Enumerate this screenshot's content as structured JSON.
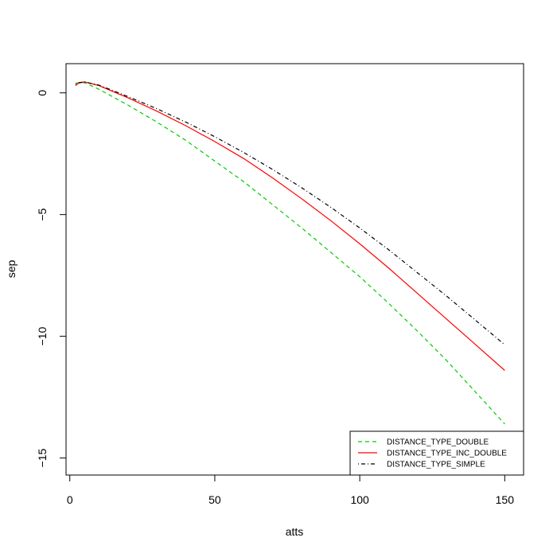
{
  "chart_data": {
    "type": "line",
    "title": "",
    "xlabel": "atts",
    "ylabel": "sep",
    "xlim": [
      -1.3,
      156.5
    ],
    "ylim": [
      -15.7,
      1.2
    ],
    "x_ticks": [
      0,
      50,
      100,
      150
    ],
    "y_ticks": [
      0,
      -5,
      -10,
      -15
    ],
    "x_tick_labels": [
      "0",
      "50",
      "100",
      "150"
    ],
    "y_tick_labels": [
      "0",
      "−5",
      "−10",
      "−15"
    ],
    "grid": false,
    "legend_position": "bottom-right",
    "series": [
      {
        "name": "DISTANCE_TYPE_DOUBLE",
        "color": "#00CD00",
        "dash": "dashed",
        "points": [
          [
            2,
            0.4
          ],
          [
            5,
            0.42
          ],
          [
            10,
            0.15
          ],
          [
            20,
            -0.5
          ],
          [
            30,
            -1.2
          ],
          [
            40,
            -1.95
          ],
          [
            50,
            -2.8
          ],
          [
            60,
            -3.65
          ],
          [
            70,
            -4.6
          ],
          [
            80,
            -5.55
          ],
          [
            90,
            -6.55
          ],
          [
            100,
            -7.55
          ],
          [
            110,
            -8.65
          ],
          [
            120,
            -9.8
          ],
          [
            130,
            -11.0
          ],
          [
            140,
            -12.3
          ],
          [
            150,
            -13.6
          ]
        ]
      },
      {
        "name": "DISTANCE_TYPE_INC_DOUBLE",
        "color": "#FF0000",
        "dash": "solid",
        "points": [
          [
            2,
            0.3
          ],
          [
            3,
            0.4
          ],
          [
            5,
            0.45
          ],
          [
            10,
            0.3
          ],
          [
            20,
            -0.2
          ],
          [
            30,
            -0.75
          ],
          [
            40,
            -1.35
          ],
          [
            50,
            -2.0
          ],
          [
            60,
            -2.7
          ],
          [
            70,
            -3.5
          ],
          [
            80,
            -4.35
          ],
          [
            90,
            -5.25
          ],
          [
            100,
            -6.2
          ],
          [
            110,
            -7.2
          ],
          [
            120,
            -8.25
          ],
          [
            130,
            -9.3
          ],
          [
            140,
            -10.35
          ],
          [
            150,
            -11.4
          ]
        ]
      },
      {
        "name": "DISTANCE_TYPE_SIMPLE",
        "color": "#000000",
        "dash": "dotdash",
        "points": [
          [
            2,
            0.35
          ],
          [
            3,
            0.42
          ],
          [
            5,
            0.45
          ],
          [
            10,
            0.32
          ],
          [
            20,
            -0.15
          ],
          [
            30,
            -0.65
          ],
          [
            40,
            -1.2
          ],
          [
            50,
            -1.8
          ],
          [
            60,
            -2.45
          ],
          [
            70,
            -3.15
          ],
          [
            80,
            -3.9
          ],
          [
            90,
            -4.7
          ],
          [
            100,
            -5.55
          ],
          [
            110,
            -6.45
          ],
          [
            120,
            -7.4
          ],
          [
            130,
            -8.35
          ],
          [
            140,
            -9.35
          ],
          [
            150,
            -10.35
          ]
        ]
      }
    ]
  }
}
